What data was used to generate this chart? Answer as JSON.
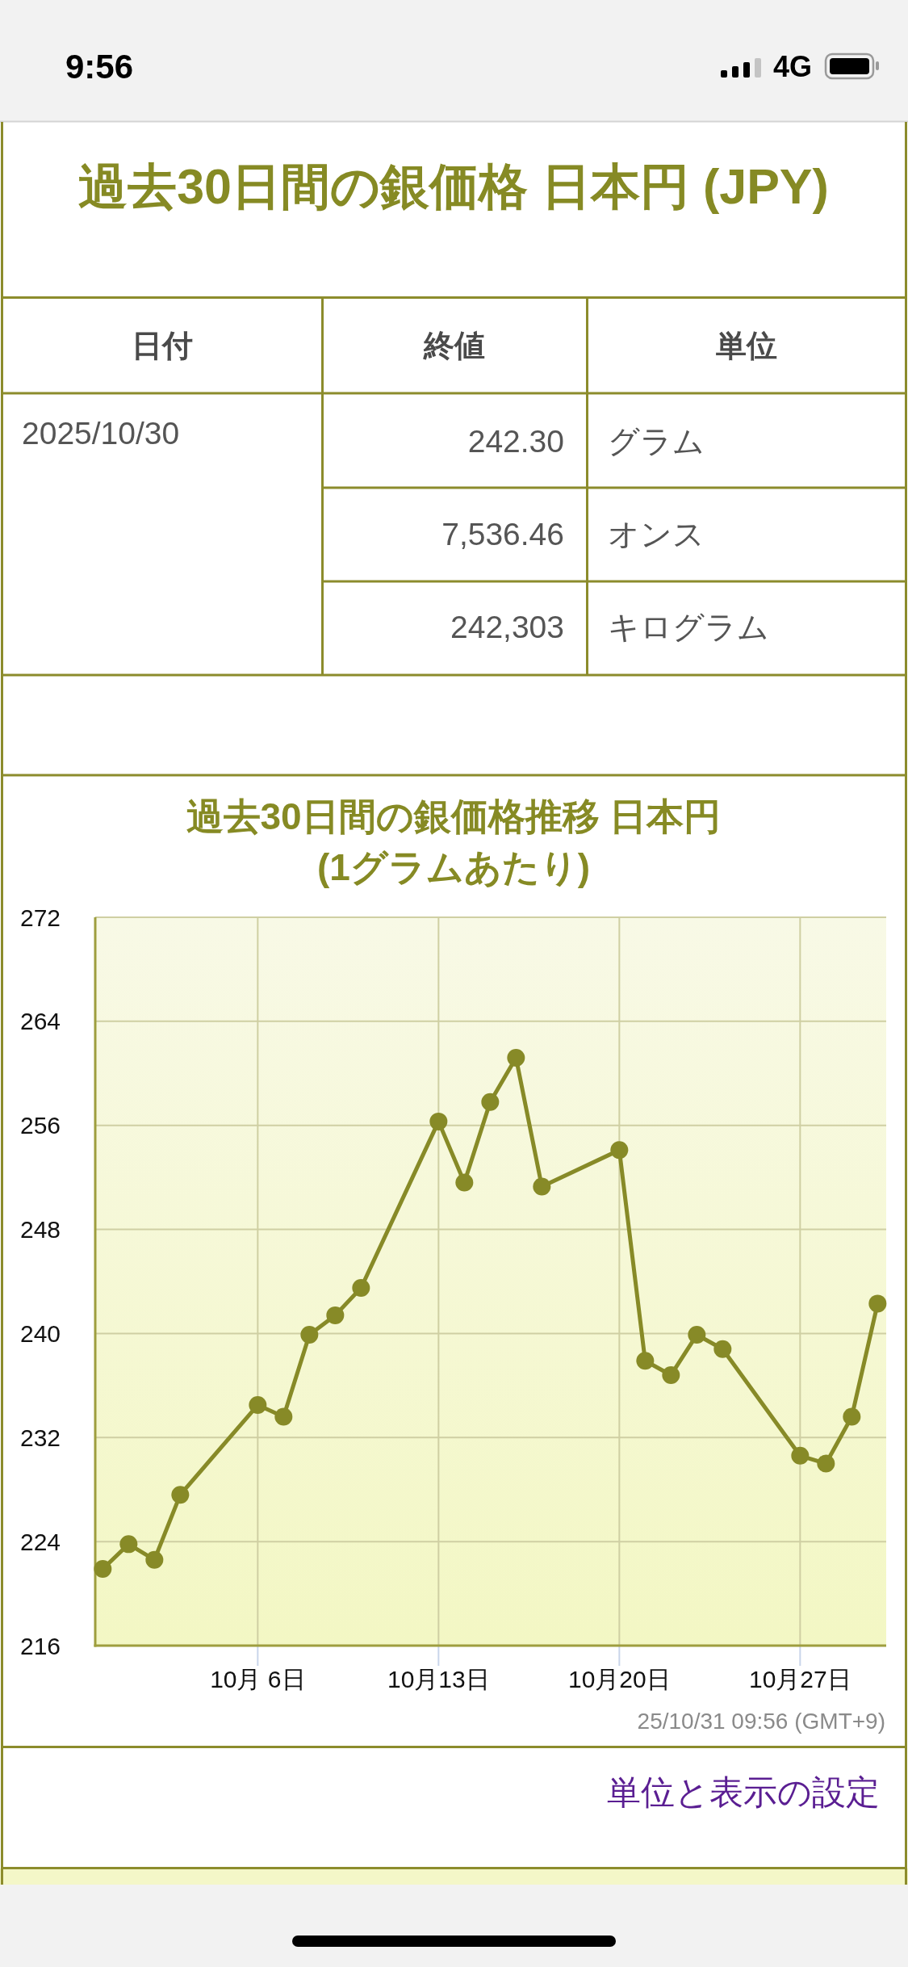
{
  "chart_data": [
    {
      "type": "other",
      "annotations": [
        "9:56",
        "4G"
      ]
    },
    {
      "type": "other",
      "title": "過去30日間の銀価格 日本円 (JPY)",
      "annotations": [
        "日付",
        "終値",
        "単位",
        "2025/10/30",
        "242.30",
        "グラム",
        "7,536.46",
        "オンス",
        "242,303",
        "キログラム"
      ]
    },
    {
      "type": "line",
      "title": "過去30日間の銀価格推移 日本円\n(1グラムあたり)",
      "x": [
        "2025-09-30",
        "2025-10-01",
        "2025-10-02",
        "2025-10-03",
        "2025-10-06",
        "2025-10-07",
        "2025-10-08",
        "2025-10-09",
        "2025-10-10",
        "2025-10-13",
        "2025-10-14",
        "2025-10-15",
        "2025-10-16",
        "2025-10-17",
        "2025-10-20",
        "2025-10-21",
        "2025-10-22",
        "2025-10-23",
        "2025-10-24",
        "2025-10-27",
        "2025-10-28",
        "2025-10-29",
        "2025-10-30"
      ],
      "values": [
        221.9,
        223.8,
        222.6,
        227.6,
        234.5,
        233.6,
        239.9,
        241.4,
        243.5,
        256.3,
        251.6,
        257.8,
        261.2,
        251.3,
        254.1,
        237.9,
        236.8,
        239.9,
        238.8,
        230.6,
        230.0,
        233.6,
        242.3
      ],
      "color": "#878a27",
      "xlim": [
        "2025-09-29T17:00",
        "2025-10-30T08:00"
      ],
      "xticks": [
        {
          "value": "2025-10-06",
          "label": "10月 6日"
        },
        {
          "value": "2025-10-13",
          "label": "10月13日"
        },
        {
          "value": "2025-10-20",
          "label": "10月20日"
        },
        {
          "value": "2025-10-27",
          "label": "10月27日"
        }
      ],
      "ylim": [
        216,
        272
      ],
      "yticks": [
        216,
        224,
        232,
        240,
        248,
        256,
        264,
        272
      ],
      "grid": true,
      "marker": "circle",
      "line_style": "solid",
      "annotations": [
        "25/10/31 09:56 (GMT+9)"
      ]
    },
    {
      "type": "other",
      "annotations": [
        "単位と表示の設定"
      ]
    }
  ]
}
